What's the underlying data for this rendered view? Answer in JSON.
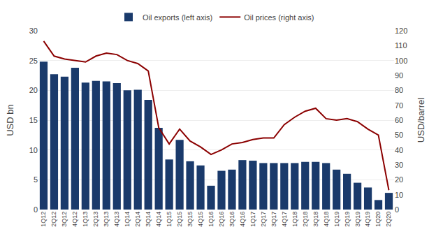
{
  "chart_data": {
    "type": "bar",
    "categories": [
      "1Q12",
      "2Q12",
      "3Q12",
      "4Q12",
      "1Q13",
      "2Q13",
      "3Q13",
      "4Q13",
      "1Q14",
      "2Q14",
      "3Q14",
      "4Q14",
      "1Q15",
      "2Q15",
      "3Q15",
      "4Q15",
      "1Q16",
      "2Q16",
      "3Q16",
      "4Q16",
      "1Q17",
      "2Q17",
      "3Q17",
      "4Q17",
      "1Q18",
      "2Q18",
      "3Q18",
      "4Q18",
      "1Q19",
      "2Q19",
      "3Q19",
      "4Q19",
      "1Q20",
      "2Q20"
    ],
    "series": [
      {
        "name": "Oil exports (left axis)",
        "type": "bar",
        "color": "#1a3a6b",
        "values": [
          24.8,
          22.7,
          22.3,
          23.8,
          21.3,
          21.6,
          21.5,
          21.2,
          20.0,
          20.1,
          18.4,
          13.7,
          8.4,
          11.7,
          8.1,
          7.4,
          4.0,
          6.5,
          6.7,
          8.3,
          8.2,
          7.8,
          7.8,
          7.8,
          7.8,
          8.0,
          8.0,
          7.8,
          6.7,
          6.0,
          4.5,
          3.7,
          1.6,
          2.8
        ]
      },
      {
        "name": "Oil prices (right axis)",
        "type": "line",
        "color": "#8b0000",
        "axis": "y2",
        "values": [
          113,
          103,
          101,
          100,
          99,
          103,
          105,
          104,
          100,
          98,
          93,
          55,
          44,
          54,
          46,
          42,
          37,
          40,
          44,
          45,
          47,
          48,
          48,
          57,
          62,
          66,
          68,
          61,
          60,
          61,
          59,
          54,
          50,
          13
        ]
      }
    ],
    "ylabel": "USD bn",
    "y2label": "USD/barrel",
    "ylim": [
      0,
      30
    ],
    "yticks": [
      0,
      5,
      10,
      15,
      20,
      25,
      30
    ],
    "y2lim": [
      0,
      120
    ],
    "y2ticks": [
      0,
      10,
      20,
      30,
      40,
      50,
      60,
      70,
      80,
      90,
      100,
      110,
      120
    ],
    "grid": true,
    "legend": "top"
  }
}
